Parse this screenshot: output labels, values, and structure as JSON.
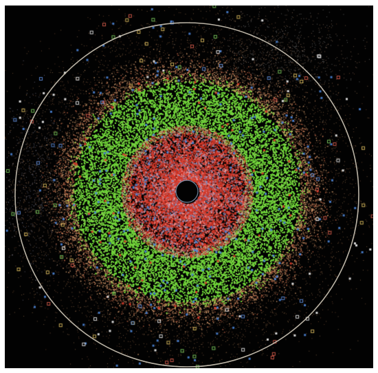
{
  "image": {
    "background_color": "#020202",
    "frame_color": "#ffffff",
    "particle_colors": {
      "green_belt": "#6fd23a",
      "red_core": "#d83a2a",
      "blue_scatter": "#4b84d6",
      "orange_dust": "#d8a070",
      "white_specks": "#f0f0f0"
    },
    "orbit_ring_color": "#cfc8b8"
  }
}
